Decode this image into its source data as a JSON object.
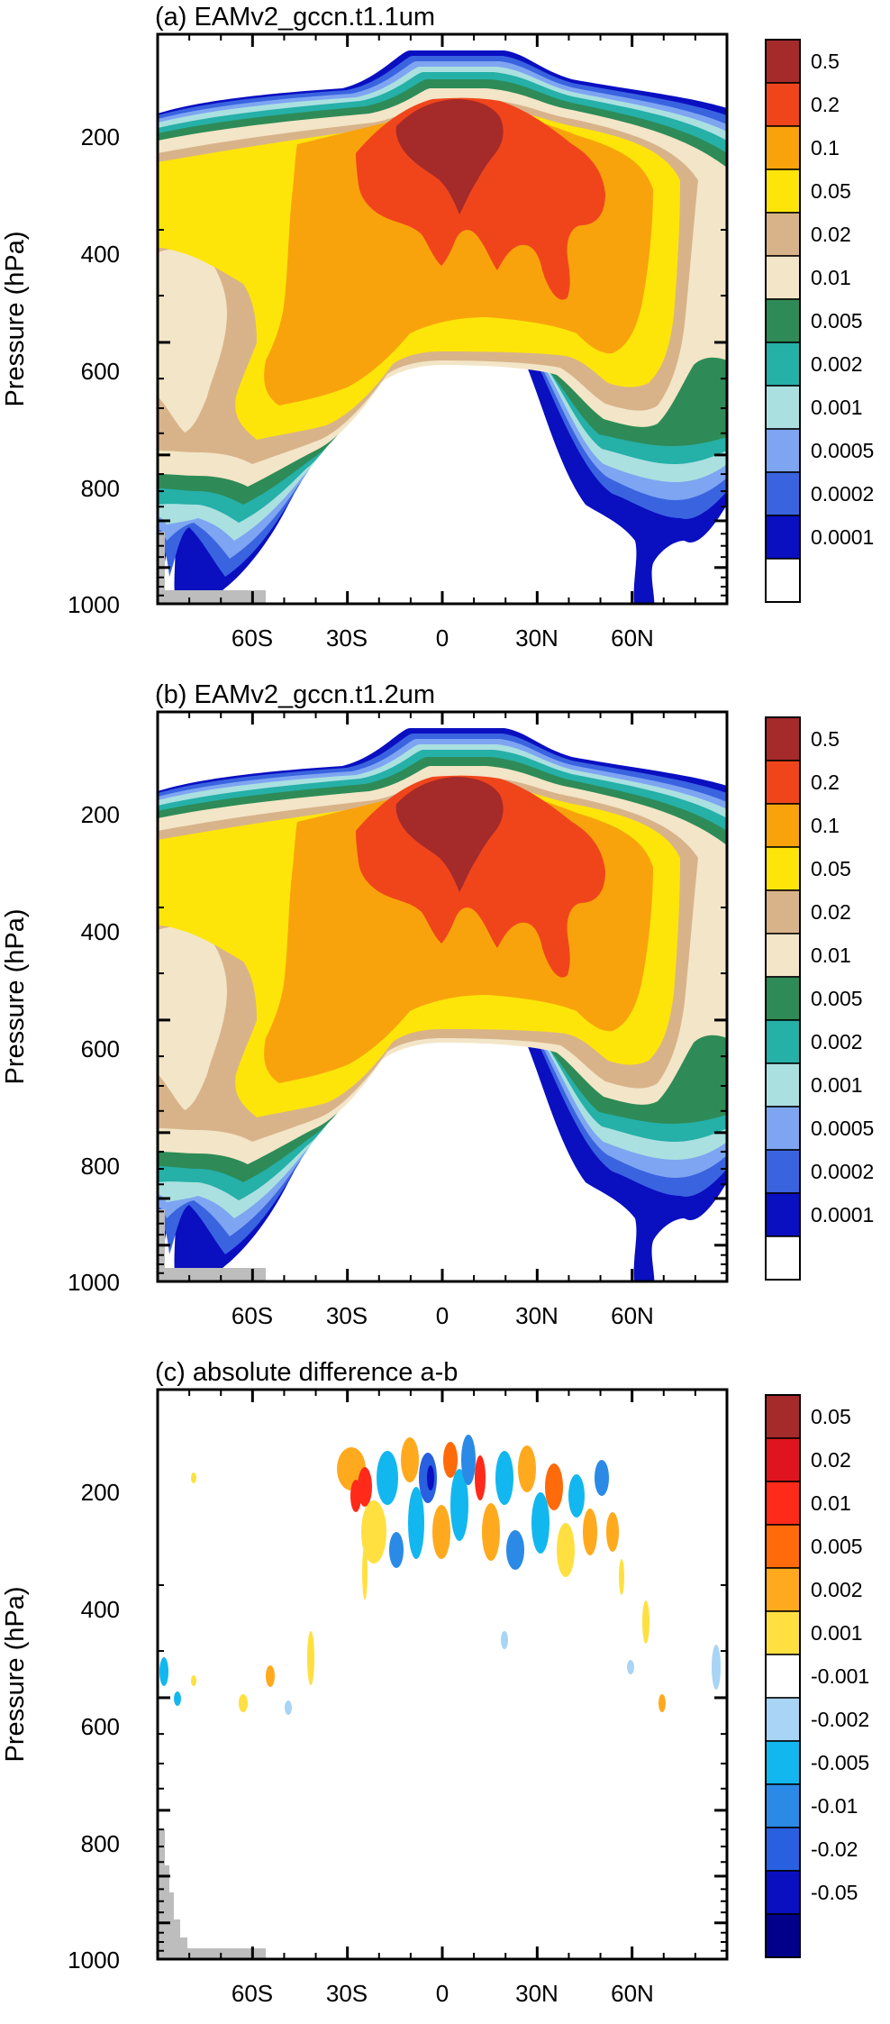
{
  "chart_data": [
    {
      "type": "heatmap",
      "title": "(a) EAMv2_gccn.t1.1um",
      "ylabel": "Pressure (hPa)",
      "x_tick_labels": [
        "60S",
        "30S",
        "0",
        "30N",
        "60N"
      ],
      "x_ticks": [
        -60,
        -30,
        0,
        30,
        60
      ],
      "xlim": [
        -90,
        90
      ],
      "y_tick_labels": [
        "200",
        "400",
        "600",
        "800",
        "1000"
      ],
      "y_ticks": [
        200,
        400,
        600,
        800,
        1000
      ],
      "ylim": [
        1000,
        30
      ],
      "y_reversed": true,
      "colorbar_labels": [
        "0.5",
        "0.2",
        "0.1",
        "0.05",
        "0.02",
        "0.01",
        "0.005",
        "0.002",
        "0.001",
        "0.0005",
        "0.0002",
        "0.0001"
      ],
      "colorbar_colors": [
        "#a52a2a",
        "#f0451b",
        "#f9a30c",
        "#fde50a",
        "#d8b38a",
        "#f3e5c7",
        "#2e8b57",
        "#25b0a8",
        "#abe0e0",
        "#7ea5f1",
        "#3a63e0",
        "#0a0fc0",
        "#ffffff"
      ]
    },
    {
      "type": "heatmap",
      "title": "(b) EAMv2_gccn.t1.2um",
      "ylabel": "Pressure (hPa)",
      "x_tick_labels": [
        "60S",
        "30S",
        "0",
        "30N",
        "60N"
      ],
      "x_ticks": [
        -60,
        -30,
        0,
        30,
        60
      ],
      "xlim": [
        -90,
        90
      ],
      "y_tick_labels": [
        "200",
        "400",
        "600",
        "800",
        "1000"
      ],
      "y_ticks": [
        200,
        400,
        600,
        800,
        1000
      ],
      "ylim": [
        1000,
        30
      ],
      "y_reversed": true,
      "colorbar_labels": [
        "0.5",
        "0.2",
        "0.1",
        "0.05",
        "0.02",
        "0.01",
        "0.005",
        "0.002",
        "0.001",
        "0.0005",
        "0.0002",
        "0.0001"
      ],
      "colorbar_colors": [
        "#a52a2a",
        "#f0451b",
        "#f9a30c",
        "#fde50a",
        "#d8b38a",
        "#f3e5c7",
        "#2e8b57",
        "#25b0a8",
        "#abe0e0",
        "#7ea5f1",
        "#3a63e0",
        "#0a0fc0",
        "#ffffff"
      ]
    },
    {
      "type": "heatmap",
      "title": "(c) absolute difference a-b",
      "ylabel": "Pressure (hPa)",
      "x_tick_labels": [
        "60S",
        "30S",
        "0",
        "30N",
        "60N"
      ],
      "x_ticks": [
        -60,
        -30,
        0,
        30,
        60
      ],
      "xlim": [
        -90,
        90
      ],
      "y_tick_labels": [
        "200",
        "400",
        "600",
        "800",
        "1000"
      ],
      "y_ticks": [
        200,
        400,
        600,
        800,
        1000
      ],
      "ylim": [
        1000,
        30
      ],
      "y_reversed": true,
      "colorbar_labels": [
        "0.05",
        "0.02",
        "0.01",
        "0.005",
        "0.002",
        "0.001",
        "-0.001",
        "-0.002",
        "-0.005",
        "-0.01",
        "-0.02",
        "-0.05"
      ],
      "colorbar_colors": [
        "#a52a2a",
        "#e0141e",
        "#ff2a1a",
        "#ff6a0a",
        "#ffaa1e",
        "#ffe040",
        "#ffffff",
        "#a8d4f5",
        "#12b7ef",
        "#2a8ae5",
        "#2860e0",
        "#0a0fc0",
        "#00008a"
      ]
    }
  ]
}
